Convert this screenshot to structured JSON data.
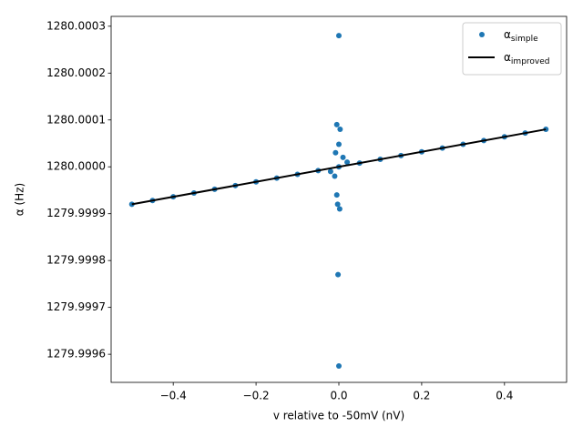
{
  "chart_data": {
    "type": "scatter",
    "xlabel": "v relative to -50mV (nV)",
    "ylabel": "α (Hz)",
    "xlim": [
      -0.55,
      0.55
    ],
    "ylim": [
      1279.99954,
      1280.000321
    ],
    "xticks": [
      {
        "value": -0.4,
        "label": "−0.4"
      },
      {
        "value": -0.2,
        "label": "−0.2"
      },
      {
        "value": 0,
        "label": "0.0"
      },
      0.2,
      0.4
    ],
    "yticks": [
      1279.9996,
      1279.9997,
      1279.9998,
      1279.9999,
      {
        "value": 1280,
        "label": "1280.0000"
      },
      1280.0001,
      1280.0002,
      1280.0003
    ],
    "legend": "upper right",
    "series": [
      {
        "name": "α",
        "subscript": "simple",
        "type": "scatter",
        "color": "#1f77b4",
        "x": [
          -0.5,
          -0.45,
          -0.4,
          -0.35,
          -0.3,
          -0.25,
          -0.2,
          -0.15,
          -0.1,
          -0.05,
          0,
          0.05,
          0.1,
          0.15,
          0.2,
          0.25,
          0.3,
          0.35,
          0.4,
          0.45,
          0.5,
          0,
          -0.005,
          0.003,
          0,
          -0.008,
          -0.005,
          -0.003,
          0.002,
          -0.002,
          0,
          0.01,
          -0.01,
          0.02,
          -0.02
        ],
        "values": [
          1279.99992,
          1279.999928,
          1279.999936,
          1279.999944,
          1279.999952,
          1279.99996,
          1279.999968,
          1279.999976,
          1279.999984,
          1279.999992,
          1280,
          1280.000008,
          1280.000016,
          1280.000024,
          1280.000032,
          1280.00004,
          1280.000048,
          1280.000056,
          1280.000064,
          1280.000072,
          1280.00008,
          1280.00028,
          1280.00009,
          1280.00008,
          1280.000048,
          1280.00003,
          1279.99994,
          1279.99992,
          1279.99991,
          1279.99977,
          1279.999575,
          1280.00002,
          1279.99998,
          1280.00001,
          1279.99999
        ]
      },
      {
        "name": "α",
        "subscript": "improved",
        "type": "line",
        "color": "#000000",
        "x": [
          -0.5,
          0.5
        ],
        "values": [
          1279.99992,
          1280.00008
        ]
      }
    ]
  }
}
